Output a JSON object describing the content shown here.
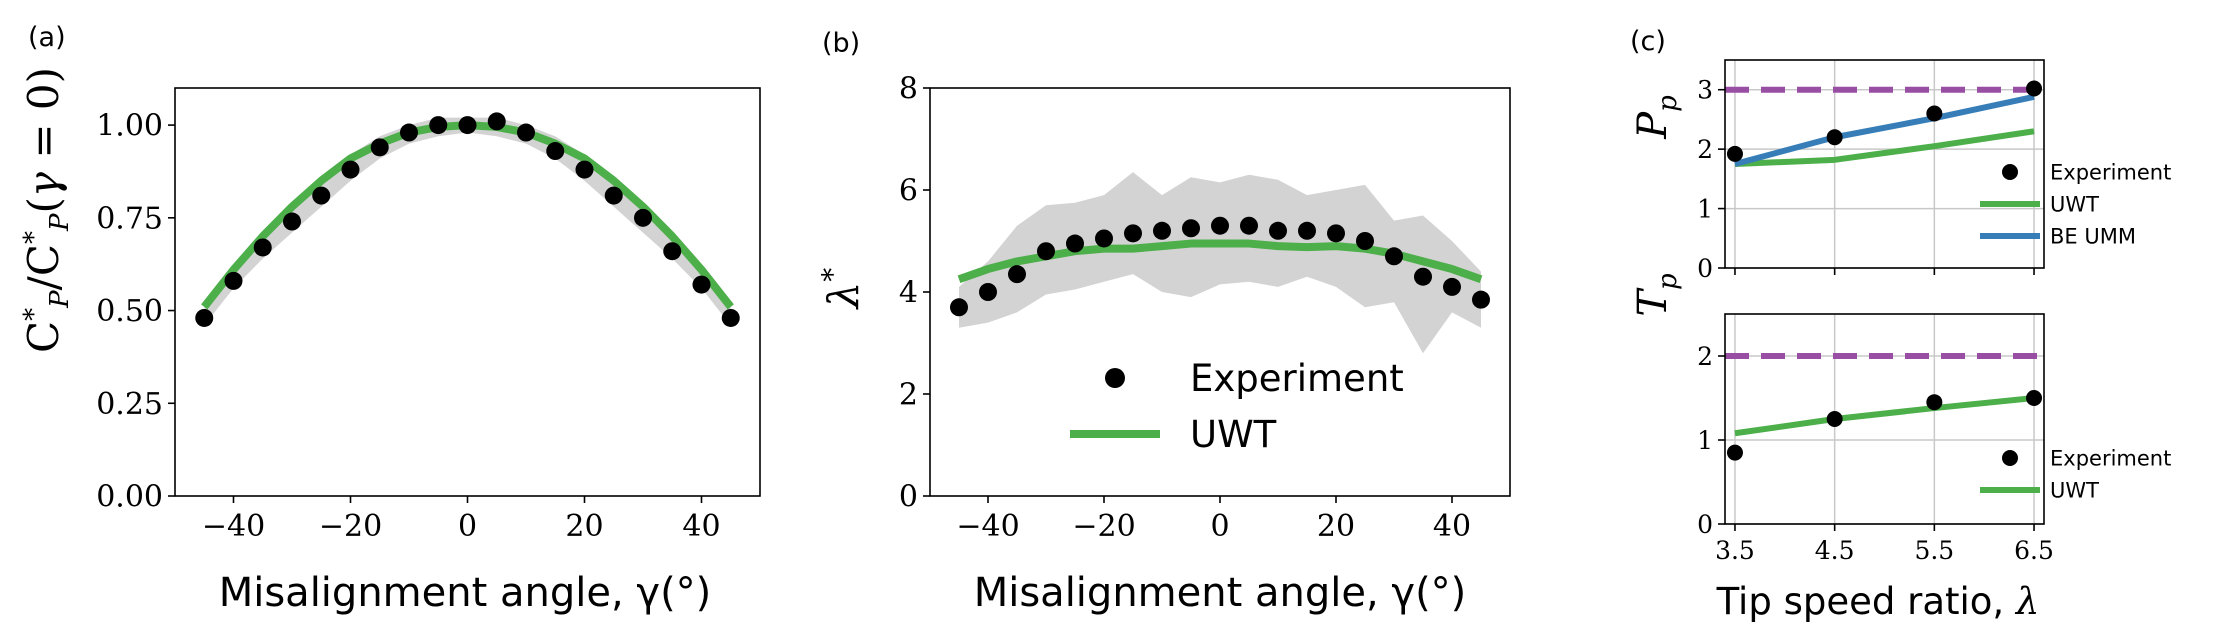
{
  "figure": {
    "panels": [
      "(a)",
      "(b)",
      "(c)"
    ]
  },
  "chart_data": [
    {
      "type": "scatter",
      "panel": "(a)",
      "xlabel": "Misalignment angle, γ(°)",
      "ylabel": "C*P/C*P(γ = 0)",
      "xlim": [
        -50,
        50
      ],
      "ylim": [
        0,
        1.1
      ],
      "xticks": [
        -40,
        -20,
        0,
        20,
        40
      ],
      "xtick_labels": [
        "−40",
        "−20",
        "0",
        "20",
        "40"
      ],
      "yticks": [
        0,
        0.25,
        0.5,
        0.75,
        1.0
      ],
      "ytick_labels": [
        "0.00",
        "0.25",
        "0.50",
        "0.75",
        "1.00"
      ],
      "grid": false,
      "legend": "none",
      "colors": {
        "experiment": "#000000",
        "uwt": "#4daf4a",
        "band": "#d3d3d3"
      },
      "series": [
        {
          "kind": "points",
          "x": [
            -45,
            -40,
            -35,
            -30,
            -25,
            -20,
            -15,
            -10,
            -5,
            0,
            5,
            10,
            15,
            20,
            25,
            30,
            35,
            40,
            45
          ],
          "values": [
            0.48,
            0.58,
            0.67,
            0.74,
            0.81,
            0.88,
            0.94,
            0.98,
            1.0,
            1.0,
            1.01,
            0.98,
            0.93,
            0.88,
            0.81,
            0.75,
            0.66,
            0.57,
            0.48
          ]
        },
        {
          "kind": "line",
          "x": [
            -45,
            -40,
            -35,
            -30,
            -25,
            -20,
            -15,
            -10,
            -5,
            0,
            5,
            10,
            15,
            20,
            25,
            30,
            35,
            40,
            45
          ],
          "values": [
            0.51,
            0.61,
            0.7,
            0.78,
            0.85,
            0.91,
            0.95,
            0.98,
            0.995,
            1.0,
            0.995,
            0.98,
            0.95,
            0.91,
            0.85,
            0.78,
            0.7,
            0.61,
            0.51
          ]
        },
        {
          "kind": "band",
          "x": [
            -45,
            -40,
            -35,
            -30,
            -25,
            -20,
            -15,
            -10,
            -5,
            0,
            5,
            10,
            15,
            20,
            25,
            30,
            35,
            40,
            45
          ],
          "lower": [
            0.46,
            0.56,
            0.64,
            0.71,
            0.78,
            0.85,
            0.91,
            0.95,
            0.97,
            0.98,
            0.97,
            0.95,
            0.91,
            0.85,
            0.78,
            0.71,
            0.64,
            0.56,
            0.46
          ],
          "upper": [
            0.52,
            0.62,
            0.71,
            0.79,
            0.86,
            0.92,
            0.97,
            1.0,
            1.02,
            1.02,
            1.02,
            1.0,
            0.97,
            0.92,
            0.86,
            0.79,
            0.71,
            0.62,
            0.52
          ]
        }
      ]
    },
    {
      "type": "scatter",
      "panel": "(b)",
      "xlabel": "Misalignment angle, γ(°)",
      "ylabel": "λ*",
      "xlim": [
        -50,
        50
      ],
      "ylim": [
        0,
        8
      ],
      "xticks": [
        -40,
        -20,
        0,
        20,
        40
      ],
      "xtick_labels": [
        "−40",
        "−20",
        "0",
        "20",
        "40"
      ],
      "yticks": [
        0,
        2,
        4,
        6,
        8
      ],
      "ytick_labels": [
        "0",
        "2",
        "4",
        "6",
        "8"
      ],
      "grid": false,
      "legend": "center-bottom",
      "legend_entries": [
        "Experiment",
        "UWT"
      ],
      "colors": {
        "experiment": "#000000",
        "uwt": "#4daf4a",
        "band": "#d3d3d3"
      },
      "series": [
        {
          "name": "Experiment",
          "kind": "points",
          "x": [
            -45,
            -40,
            -35,
            -30,
            -25,
            -20,
            -15,
            -10,
            -5,
            0,
            5,
            10,
            15,
            20,
            25,
            30,
            35,
            40,
            45
          ],
          "values": [
            3.7,
            4.0,
            4.35,
            4.8,
            4.95,
            5.05,
            5.15,
            5.2,
            5.25,
            5.3,
            5.3,
            5.2,
            5.2,
            5.15,
            5.0,
            4.7,
            4.3,
            4.1,
            3.85
          ]
        },
        {
          "name": "UWT",
          "kind": "line",
          "x": [
            -45,
            -40,
            -35,
            -30,
            -25,
            -20,
            -15,
            -10,
            -5,
            0,
            5,
            10,
            15,
            20,
            25,
            30,
            35,
            40,
            45
          ],
          "values": [
            4.25,
            4.45,
            4.6,
            4.7,
            4.8,
            4.85,
            4.85,
            4.9,
            4.95,
            4.95,
            4.95,
            4.9,
            4.88,
            4.9,
            4.85,
            4.75,
            4.6,
            4.45,
            4.25
          ]
        },
        {
          "kind": "band",
          "x": [
            -45,
            -40,
            -35,
            -30,
            -25,
            -20,
            -15,
            -10,
            -5,
            0,
            5,
            10,
            15,
            20,
            25,
            30,
            35,
            40,
            45
          ],
          "lower": [
            3.3,
            3.4,
            3.6,
            3.95,
            4.05,
            4.2,
            4.35,
            4.0,
            3.9,
            4.15,
            4.2,
            4.1,
            4.3,
            4.1,
            3.7,
            3.8,
            2.8,
            3.6,
            3.3
          ],
          "upper": [
            4.1,
            4.6,
            5.3,
            5.7,
            5.75,
            5.9,
            6.35,
            5.9,
            6.25,
            6.15,
            6.3,
            6.2,
            5.9,
            6.0,
            6.1,
            5.4,
            5.5,
            5.0,
            4.4
          ]
        }
      ]
    },
    {
      "type": "line",
      "panel": "(c) top",
      "xlabel": "",
      "ylabel": "Pp",
      "xlim": [
        3.4,
        6.6
      ],
      "ylim": [
        0,
        3.5
      ],
      "xticks": [
        3.5,
        4.5,
        5.5,
        6.5
      ],
      "yticks": [
        0,
        1,
        2,
        3
      ],
      "ytick_labels": [
        "0",
        "1",
        "2",
        "3"
      ],
      "grid": true,
      "legend": "bottom-right",
      "legend_entries": [
        "Experiment",
        "UWT",
        "BE UMM"
      ],
      "colors": {
        "experiment": "#000000",
        "uwt": "#4daf4a",
        "be_umm": "#377eb8",
        "reference": "#984ea3"
      },
      "reference_line": 3,
      "series": [
        {
          "name": "Experiment",
          "kind": "points",
          "x": [
            3.5,
            4.5,
            5.5,
            6.5
          ],
          "values": [
            1.92,
            2.2,
            2.6,
            3.02
          ]
        },
        {
          "name": "UWT",
          "kind": "line",
          "x": [
            3.5,
            4.5,
            5.5,
            6.5
          ],
          "values": [
            1.75,
            1.82,
            2.05,
            2.3
          ]
        },
        {
          "name": "BE UMM",
          "kind": "line",
          "x": [
            3.5,
            4.5,
            5.5,
            6.5
          ],
          "values": [
            1.75,
            2.2,
            2.52,
            2.88
          ]
        }
      ]
    },
    {
      "type": "line",
      "panel": "(c) bottom",
      "xlabel": "Tip speed ratio, λ",
      "ylabel": "Tp",
      "xlim": [
        3.4,
        6.6
      ],
      "ylim": [
        0,
        2.5
      ],
      "xticks": [
        3.5,
        4.5,
        5.5,
        6.5
      ],
      "xtick_labels": [
        "3.5",
        "4.5",
        "5.5",
        "6.5"
      ],
      "yticks": [
        0,
        1,
        2
      ],
      "ytick_labels": [
        "0",
        "1",
        "2"
      ],
      "grid": true,
      "legend": "bottom-right",
      "legend_entries": [
        "Experiment",
        "UWT"
      ],
      "colors": {
        "experiment": "#000000",
        "uwt": "#4daf4a",
        "reference": "#984ea3"
      },
      "reference_line": 2,
      "series": [
        {
          "name": "Experiment",
          "kind": "points",
          "x": [
            3.5,
            4.5,
            5.5,
            6.5
          ],
          "values": [
            0.85,
            1.25,
            1.45,
            1.5
          ]
        },
        {
          "name": "UWT",
          "kind": "line",
          "x": [
            3.5,
            4.5,
            5.5,
            6.5
          ],
          "values": [
            1.08,
            1.25,
            1.38,
            1.5
          ]
        }
      ]
    }
  ]
}
